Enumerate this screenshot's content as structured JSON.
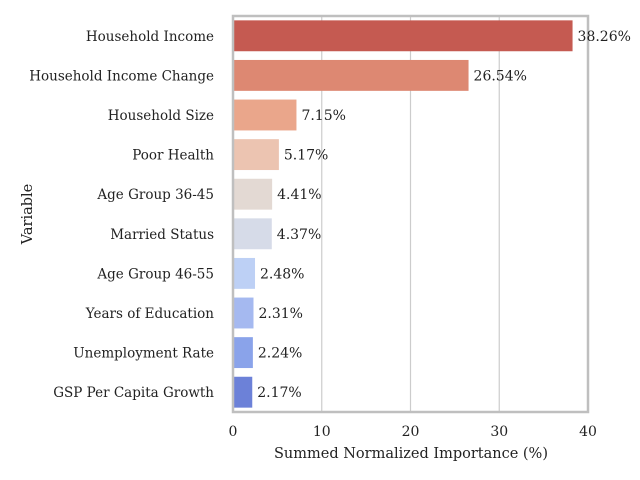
{
  "chart_data": {
    "type": "bar",
    "orientation": "horizontal",
    "title": "",
    "xlabel": "Summed Normalized Importance (%)",
    "ylabel": "Variable",
    "xlim": [
      0,
      40
    ],
    "xticks": [
      0,
      10,
      20,
      30,
      40
    ],
    "grid": "vertical",
    "categories": [
      "Household Income",
      "Household Income Change",
      "Household Size",
      "Poor Health",
      "Age Group 36-45",
      "Married Status",
      "Age Group 46-55",
      "Years of Education",
      "Unemployment Rate",
      "GSP Per Capita Growth"
    ],
    "values": [
      38.26,
      26.54,
      7.15,
      5.17,
      4.41,
      4.37,
      2.48,
      2.31,
      2.24,
      2.17
    ],
    "value_labels": [
      "38.26%",
      "26.54%",
      "7.15%",
      "5.17%",
      "4.41%",
      "4.37%",
      "2.48%",
      "2.31%",
      "2.24%",
      "2.17%"
    ],
    "colors": [
      "#c55a51",
      "#dd8872",
      "#eaa68b",
      "#ecc4b1",
      "#e3d9d3",
      "#d6dbe8",
      "#bdd0f5",
      "#a5b9f0",
      "#8aa3ea",
      "#6c81d8"
    ],
    "grid_color": "#cccccc",
    "frame_color": "#bfbfbf"
  }
}
